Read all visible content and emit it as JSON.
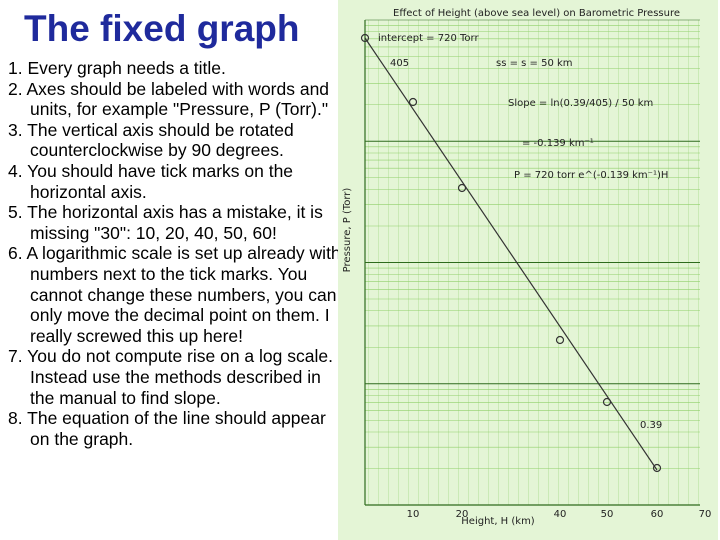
{
  "slide": {
    "title": "The fixed graph",
    "items": [
      "1. Every graph needs a title.",
      "2. Axes should be labeled with words and units, for example \"Pressure, P (Torr).\"",
      "3. The vertical axis should be rotated counterclockwise by 90 degrees.",
      "4. You should have tick marks on the horizontal axis.",
      "5. The horizontal axis has a mistake, it is missing \"30\": 10, 20, 40, 50, 60!",
      "6. A logarithmic scale is set up already with numbers next to the tick marks. You cannot change these numbers, you can only move the decimal point on them. I really screwed this up here!",
      "7. You do not compute rise on a log scale. Instead use the methods described in the manual to find slope.",
      "8. The equation of the line should appear on the graph."
    ]
  },
  "graph": {
    "title": "Effect of Height (above sea level) on Barometric Pressure",
    "y_label": "Pressure, P (Torr)",
    "x_label": "Height, H (km)",
    "intercept": "intercept = 720 Torr",
    "run": "ss = s = 50 km",
    "slope": "Slope = ln(0.39/405) / 50 km",
    "slope_value": "= -0.139 km⁻¹",
    "equation": "P = 720 torr e^(-0.139 km⁻¹)H",
    "point_high": "405",
    "point_low": "0.39",
    "x_ticks": [
      "10",
      "20",
      "40",
      "50",
      "60",
      "70"
    ]
  }
}
